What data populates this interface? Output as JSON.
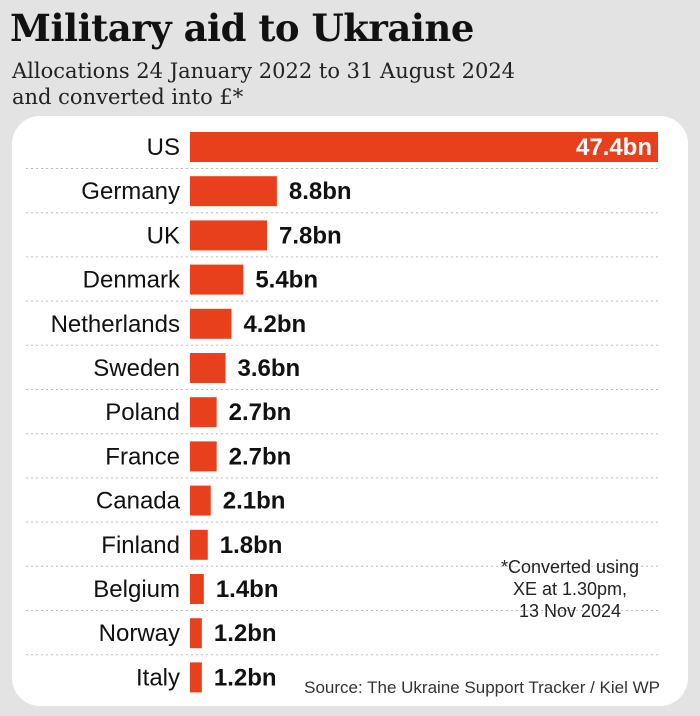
{
  "header": {
    "title": "Military aid to Ukraine",
    "subtitle_line1": "Allocations 24 January 2022 to 31 August 2024",
    "subtitle_line2": "and converted into £*"
  },
  "footnote": {
    "line1": "*Converted using",
    "line2": "XE at 1.30pm,",
    "line3": "13 Nov 2024"
  },
  "source": "Source: The Ukraine Support Tracker / Kiel WP",
  "colors": {
    "bar": "#e8401c",
    "background": "#e3e3e3",
    "panel": "#ffffff"
  },
  "chart_data": {
    "type": "bar",
    "orientation": "horizontal",
    "title": "Military aid to Ukraine",
    "subtitle": "Allocations 24 January 2022 to 31 August 2024 and converted into £*",
    "categories": [
      "US",
      "Germany",
      "UK",
      "Denmark",
      "Netherlands",
      "Sweden",
      "Poland",
      "France",
      "Canada",
      "Finland",
      "Belgium",
      "Norway",
      "Italy"
    ],
    "values": [
      47.4,
      8.8,
      7.8,
      5.4,
      4.2,
      3.6,
      2.7,
      2.7,
      2.1,
      1.8,
      1.4,
      1.2,
      1.2
    ],
    "value_labels": [
      "47.4bn",
      "8.8bn",
      "7.8bn",
      "5.4bn",
      "4.2bn",
      "3.6bn",
      "2.7bn",
      "2.7bn",
      "2.1bn",
      "1.8bn",
      "1.4bn",
      "1.2bn",
      "1.2bn"
    ],
    "unit": "£bn",
    "xlim": [
      0,
      47.4
    ],
    "grid": false,
    "legend": "none"
  }
}
